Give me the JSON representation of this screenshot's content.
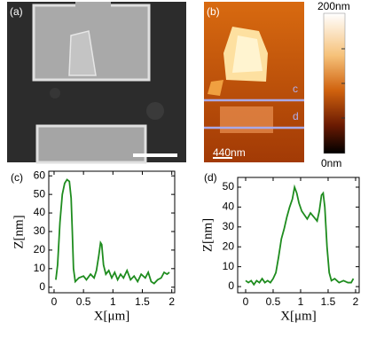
{
  "panels": {
    "a": "(a)",
    "b": "(b)",
    "line_c": "c",
    "line_d": "d",
    "scale_label": "440nm",
    "colorbar_max": "200nm",
    "colorbar_min": "0nm"
  },
  "chart_data": [
    {
      "type": "line",
      "title": "(c)",
      "x_label": "X[μm]",
      "y_label": "Z[nm]",
      "xlim": [
        -0.09,
        2.05
      ],
      "xticks": [
        0,
        0.5,
        1,
        1.5,
        2
      ],
      "ylim": [
        -3,
        62.5
      ],
      "yticks": [
        0,
        10,
        20,
        30,
        40,
        50,
        60
      ],
      "series": [
        {
          "color": "#1e8c1e",
          "x": [
            0.03,
            0.06,
            0.1,
            0.14,
            0.18,
            0.22,
            0.26,
            0.29,
            0.31,
            0.33,
            0.36,
            0.42,
            0.5,
            0.55,
            0.62,
            0.68,
            0.72,
            0.76,
            0.79,
            0.81,
            0.84,
            0.88,
            0.93,
            0.98,
            1.03,
            1.08,
            1.13,
            1.18,
            1.24,
            1.3,
            1.36,
            1.42,
            1.48,
            1.55,
            1.6,
            1.65,
            1.7,
            1.76,
            1.82,
            1.87,
            1.92,
            1.96
          ],
          "values": [
            4,
            12,
            35,
            50,
            56,
            58,
            57,
            48,
            30,
            10,
            3,
            5,
            6,
            4,
            7,
            5,
            9,
            17,
            24,
            23,
            12,
            7,
            9,
            5,
            8,
            4,
            7,
            5,
            9,
            4,
            6,
            3,
            7,
            5,
            8,
            3,
            2,
            4,
            5,
            8,
            7,
            8
          ]
        }
      ]
    },
    {
      "type": "line",
      "title": "(d)",
      "x_label": "X[μm]",
      "y_label": "Z[nm]",
      "xlim": [
        -0.145,
        2.065
      ],
      "xticks": [
        0,
        0.5,
        1,
        1.5,
        2
      ],
      "ylim": [
        -3.1,
        54.9
      ],
      "yticks": [
        0,
        10,
        20,
        30,
        40,
        50
      ],
      "series": [
        {
          "color": "#1e8c1e",
          "x": [
            0,
            0.05,
            0.1,
            0.15,
            0.2,
            0.25,
            0.3,
            0.35,
            0.4,
            0.45,
            0.5,
            0.55,
            0.6,
            0.65,
            0.7,
            0.75,
            0.8,
            0.85,
            0.89,
            0.93,
            0.97,
            1.02,
            1.07,
            1.12,
            1.18,
            1.24,
            1.3,
            1.34,
            1.38,
            1.41,
            1.44,
            1.48,
            1.52,
            1.56,
            1.62,
            1.7,
            1.78,
            1.86,
            1.92,
            1.96
          ],
          "values": [
            3,
            2,
            3,
            1,
            3,
            2,
            4,
            2,
            3,
            2,
            4,
            7,
            15,
            24,
            29,
            35,
            40,
            44,
            50,
            47,
            42,
            38,
            36,
            34,
            37,
            35,
            33,
            38,
            46,
            47,
            40,
            20,
            7,
            3,
            4,
            2,
            3,
            2,
            2,
            4
          ]
        }
      ]
    }
  ]
}
